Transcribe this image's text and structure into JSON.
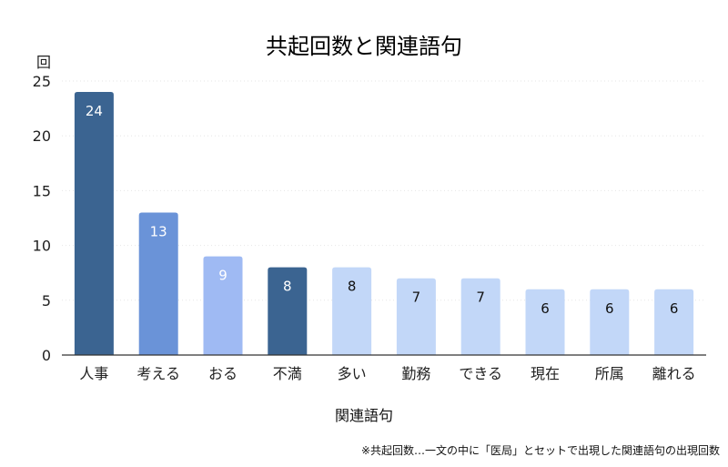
{
  "chart_data": {
    "type": "bar",
    "title": "共起回数と関連語句",
    "ylabel": "回",
    "xlabel": "関連語句",
    "footnote": "※共起回数…一文の中に「医局」とセットで出現した関連語句の出現回数",
    "categories": [
      "人事",
      "考える",
      "おる",
      "不満",
      "多い",
      "勤務",
      "できる",
      "現在",
      "所属",
      "離れる"
    ],
    "values": [
      24,
      13,
      9,
      8,
      8,
      7,
      7,
      6,
      6,
      6
    ],
    "ylim": [
      0,
      25
    ],
    "yticks": [
      "0",
      "5",
      "10",
      "15",
      "20",
      "25"
    ],
    "grid": true,
    "legend": "none",
    "bar_colors": [
      "#3b6491",
      "#6a93d8",
      "#9fbaf3",
      "#3b6491",
      "#c2d7f8",
      "#c2d7f8",
      "#c2d7f8",
      "#c2d7f8",
      "#c2d7f8",
      "#c2d7f8"
    ],
    "label_colors": [
      "#ffffff",
      "#ffffff",
      "#ffffff",
      "#ffffff",
      "#111111",
      "#111111",
      "#111111",
      "#111111",
      "#111111",
      "#111111"
    ]
  }
}
